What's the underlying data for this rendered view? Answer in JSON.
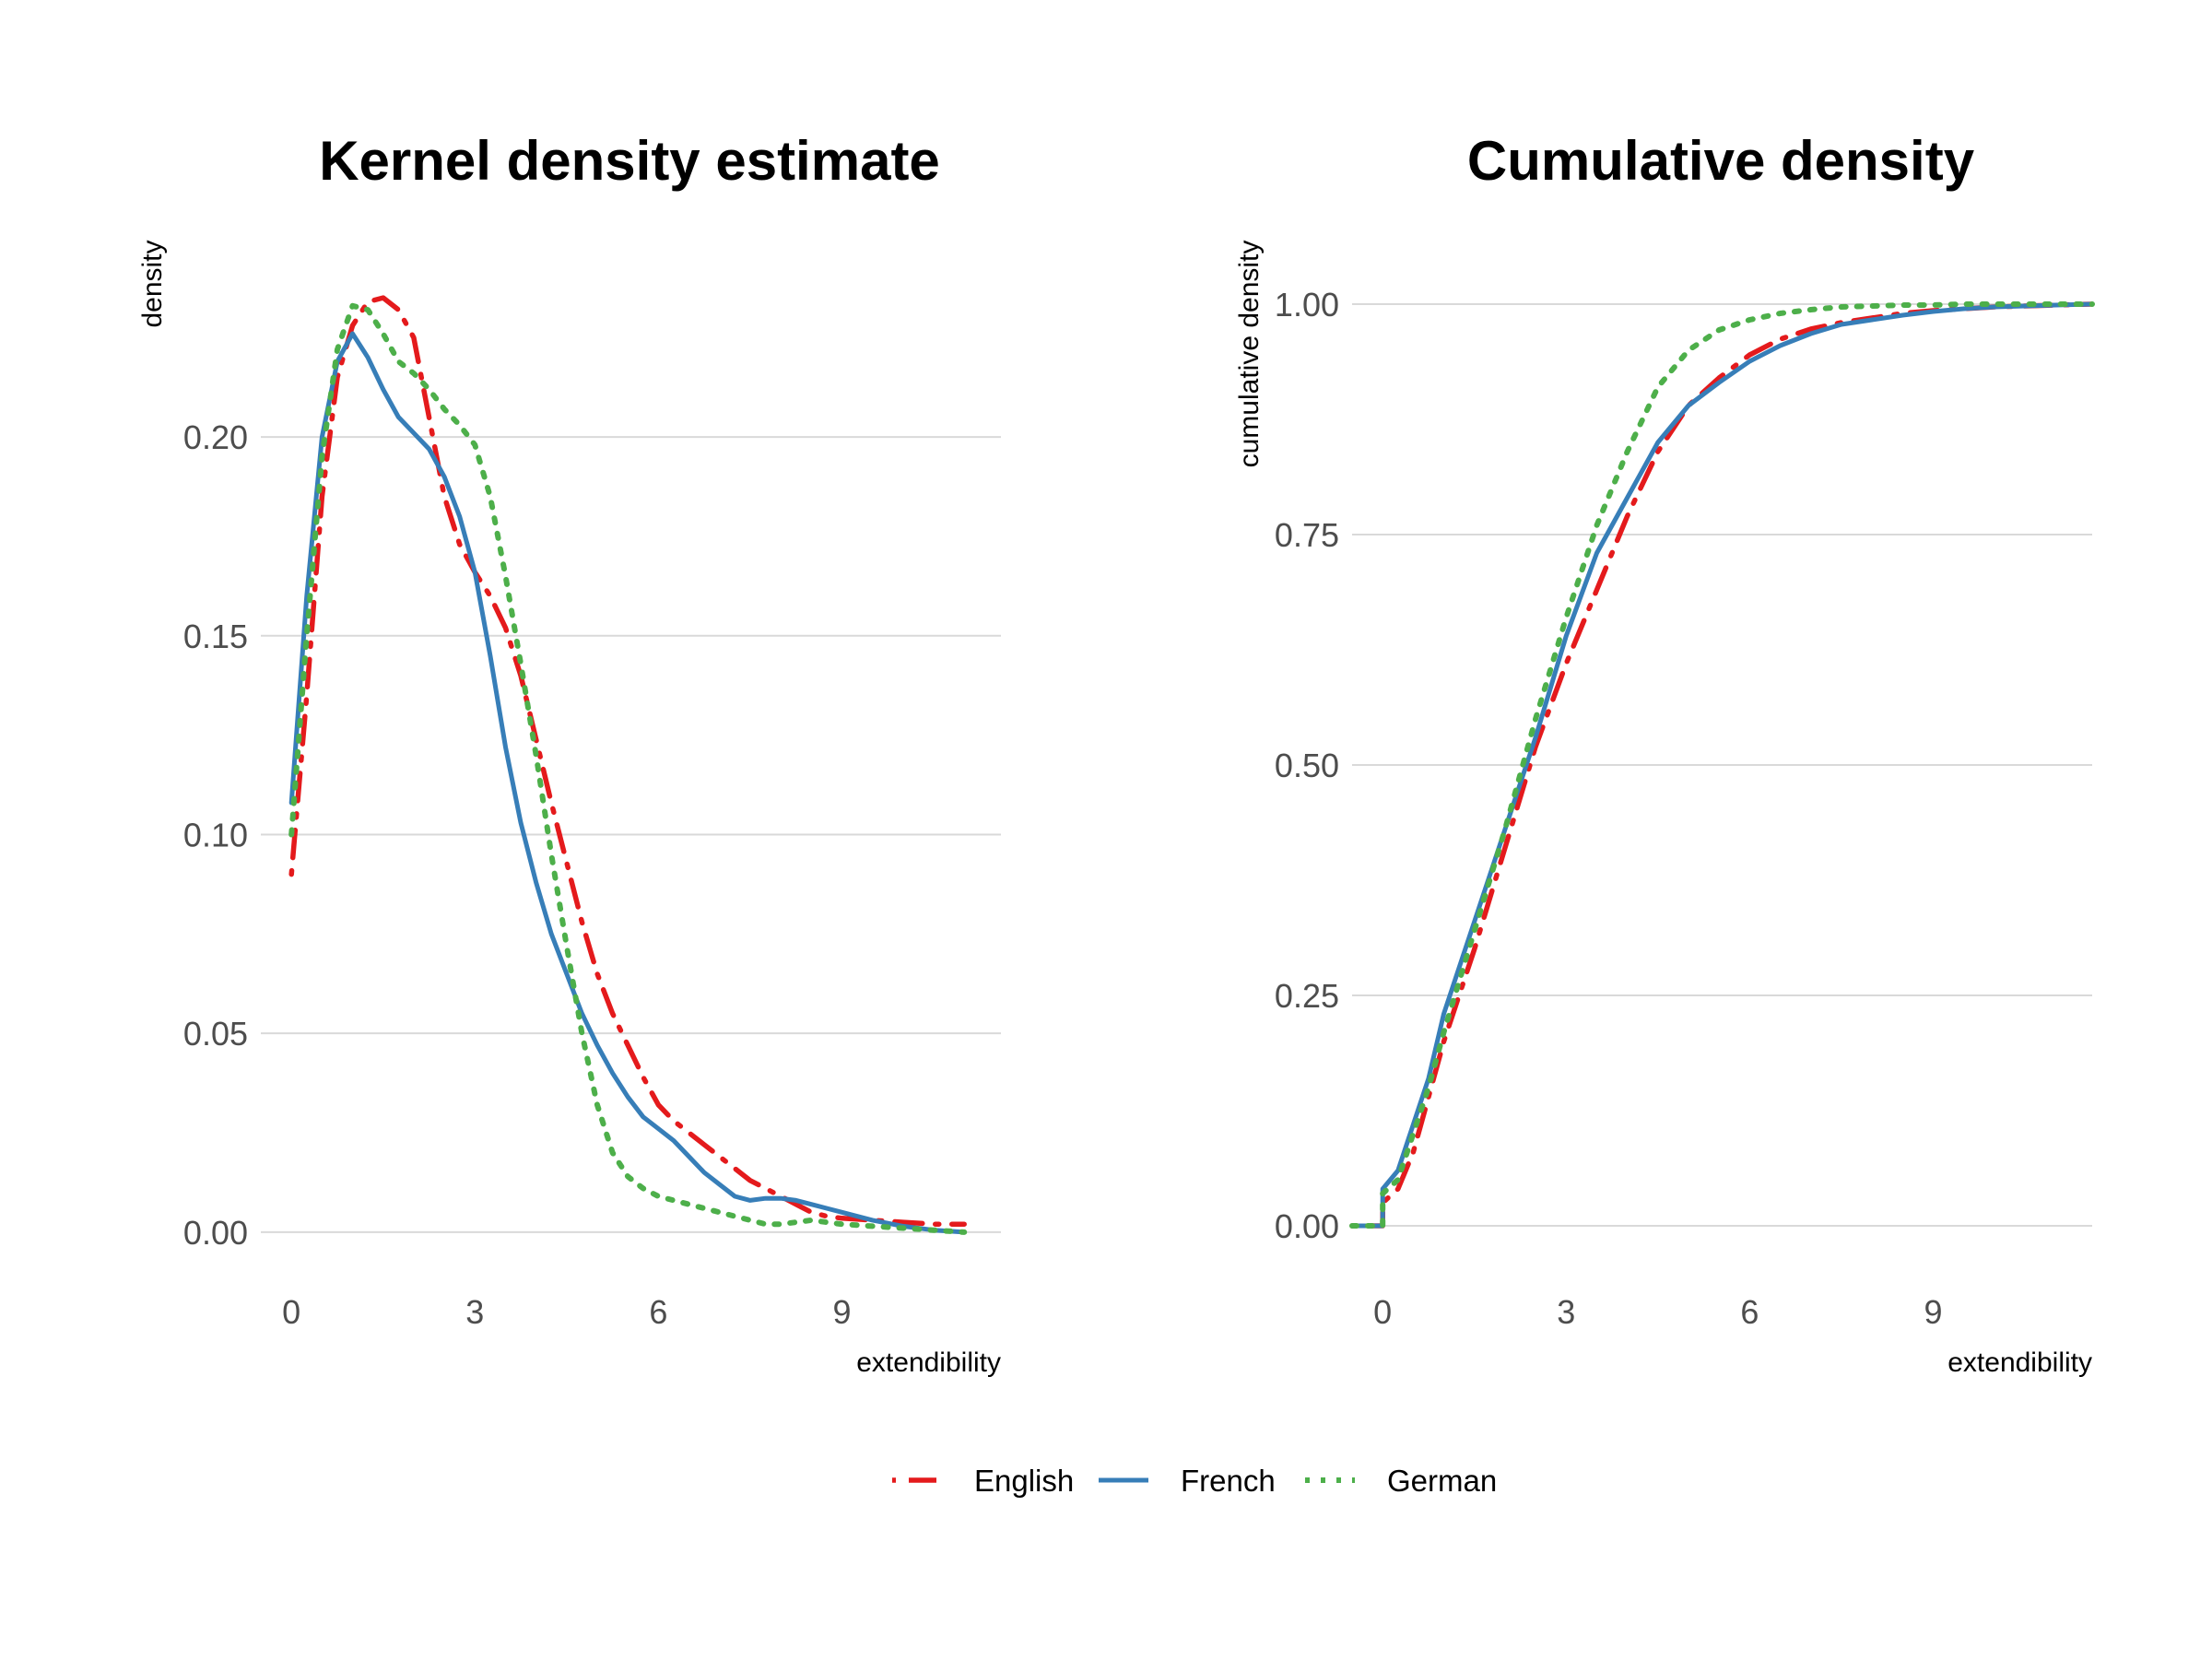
{
  "colors": {
    "English": "#e41a1c",
    "French": "#377eb8",
    "German": "#4daf4a"
  },
  "legend": {
    "items": [
      "English",
      "French",
      "German"
    ],
    "placement": "bottom"
  },
  "chart_data": [
    {
      "type": "line",
      "title": "Kernel density estimate",
      "xlabel": "extendibility",
      "ylabel": "density",
      "xlim": [
        -0.5,
        11.6
      ],
      "ylim": [
        -0.01,
        0.245
      ],
      "xticks": [
        0,
        3,
        6,
        9
      ],
      "yticks": [
        0.0,
        0.05,
        0.1,
        0.15,
        0.2
      ],
      "ytick_labels": [
        "0.00",
        "0.05",
        "0.10",
        "0.15",
        "0.20"
      ],
      "grid": "horizontal",
      "series": [
        {
          "name": "English",
          "line_style": "dotdash",
          "x": [
            0,
            0.25,
            0.5,
            0.75,
            1.0,
            1.25,
            1.5,
            1.75,
            2.0,
            2.25,
            2.5,
            2.75,
            3.0,
            3.25,
            3.5,
            3.75,
            4.0,
            4.25,
            4.5,
            4.75,
            5.0,
            5.25,
            5.5,
            5.75,
            6.0,
            6.25,
            6.5,
            6.75,
            7.0,
            7.25,
            7.5,
            7.75,
            8.0,
            8.25,
            8.5,
            8.75,
            9.0,
            9.5,
            10.0,
            10.5,
            11.0
          ],
          "y": [
            0.09,
            0.135,
            0.185,
            0.215,
            0.228,
            0.234,
            0.235,
            0.232,
            0.225,
            0.205,
            0.185,
            0.173,
            0.166,
            0.16,
            0.152,
            0.14,
            0.124,
            0.108,
            0.093,
            0.078,
            0.065,
            0.055,
            0.047,
            0.039,
            0.032,
            0.028,
            0.025,
            0.022,
            0.019,
            0.016,
            0.013,
            0.011,
            0.009,
            0.007,
            0.005,
            0.004,
            0.0035,
            0.003,
            0.0025,
            0.002,
            0.002
          ]
        },
        {
          "name": "French",
          "line_style": "solid",
          "x": [
            0,
            0.25,
            0.5,
            0.75,
            1.0,
            1.25,
            1.5,
            1.75,
            2.0,
            2.25,
            2.5,
            2.75,
            3.0,
            3.25,
            3.5,
            3.75,
            4.0,
            4.25,
            4.5,
            4.75,
            5.0,
            5.25,
            5.5,
            5.75,
            6.0,
            6.25,
            6.5,
            6.75,
            7.0,
            7.25,
            7.5,
            7.75,
            8.0,
            8.25,
            8.5,
            8.75,
            9.0,
            9.5,
            10.0,
            10.5,
            11.0
          ],
          "y": [
            0.108,
            0.16,
            0.2,
            0.219,
            0.226,
            0.22,
            0.212,
            0.205,
            0.201,
            0.197,
            0.19,
            0.18,
            0.166,
            0.145,
            0.122,
            0.103,
            0.088,
            0.075,
            0.065,
            0.055,
            0.047,
            0.04,
            0.034,
            0.029,
            0.026,
            0.023,
            0.019,
            0.015,
            0.012,
            0.009,
            0.008,
            0.0085,
            0.0085,
            0.008,
            0.007,
            0.006,
            0.005,
            0.003,
            0.0015,
            0.0005,
            0.0
          ]
        },
        {
          "name": "German",
          "line_style": "dotted",
          "x": [
            0,
            0.25,
            0.5,
            0.75,
            1.0,
            1.25,
            1.5,
            1.75,
            2.0,
            2.25,
            2.5,
            2.75,
            3.0,
            3.25,
            3.5,
            3.75,
            4.0,
            4.25,
            4.5,
            4.75,
            5.0,
            5.25,
            5.5,
            5.75,
            6.0,
            6.25,
            6.5,
            6.75,
            7.0,
            7.25,
            7.5,
            7.75,
            8.0,
            8.25,
            8.5,
            8.75,
            9.0,
            9.5,
            10.0,
            10.5,
            11.0
          ],
          "y": [
            0.1,
            0.15,
            0.195,
            0.222,
            0.233,
            0.232,
            0.226,
            0.219,
            0.216,
            0.212,
            0.207,
            0.203,
            0.198,
            0.185,
            0.165,
            0.143,
            0.12,
            0.095,
            0.072,
            0.05,
            0.032,
            0.02,
            0.014,
            0.011,
            0.009,
            0.008,
            0.007,
            0.006,
            0.005,
            0.004,
            0.003,
            0.002,
            0.002,
            0.0025,
            0.003,
            0.0025,
            0.002,
            0.0015,
            0.001,
            0.0005,
            0.0
          ]
        }
      ]
    },
    {
      "type": "line",
      "title": "Cumulative density",
      "xlabel": "extendibility",
      "ylabel": "cumulative density",
      "xlim": [
        -0.5,
        11.6
      ],
      "ylim": [
        -0.05,
        1.05
      ],
      "xticks": [
        0,
        3,
        6,
        9
      ],
      "yticks": [
        0.0,
        0.25,
        0.5,
        0.75,
        1.0
      ],
      "ytick_labels": [
        "0.00",
        "0.25",
        "0.50",
        "0.75",
        "1.00"
      ],
      "grid": "horizontal",
      "series": [
        {
          "name": "English",
          "line_style": "dotdash",
          "x": [
            -0.5,
            0,
            0,
            0.25,
            0.5,
            0.75,
            1.0,
            1.5,
            2.0,
            2.5,
            3.0,
            3.5,
            4.0,
            4.5,
            5.0,
            5.5,
            6.0,
            6.5,
            7.0,
            7.5,
            8.0,
            8.5,
            9.0,
            9.5,
            10.0,
            10.5,
            11.0,
            11.6
          ],
          "y": [
            0,
            0,
            0.025,
            0.04,
            0.08,
            0.14,
            0.2,
            0.3,
            0.41,
            0.52,
            0.61,
            0.69,
            0.77,
            0.84,
            0.89,
            0.92,
            0.945,
            0.962,
            0.973,
            0.98,
            0.985,
            0.99,
            0.993,
            0.995,
            0.997,
            0.998,
            0.999,
            1.0
          ]
        },
        {
          "name": "French",
          "line_style": "solid",
          "x": [
            -0.5,
            0,
            0,
            0.25,
            0.5,
            0.75,
            1.0,
            1.5,
            2.0,
            2.5,
            3.0,
            3.5,
            4.0,
            4.5,
            5.0,
            5.5,
            6.0,
            6.5,
            7.0,
            7.5,
            8.0,
            8.5,
            9.0,
            9.5,
            10.0,
            10.5,
            11.0,
            11.6
          ],
          "y": [
            0,
            0,
            0.04,
            0.06,
            0.11,
            0.16,
            0.23,
            0.33,
            0.43,
            0.53,
            0.64,
            0.73,
            0.79,
            0.85,
            0.89,
            0.915,
            0.938,
            0.955,
            0.968,
            0.978,
            0.983,
            0.988,
            0.992,
            0.995,
            0.997,
            0.998,
            0.999,
            1.0
          ]
        },
        {
          "name": "German",
          "line_style": "dotted",
          "x": [
            -0.5,
            0,
            0,
            0.25,
            0.5,
            0.75,
            1.0,
            1.5,
            2.0,
            2.5,
            3.0,
            3.5,
            4.0,
            4.5,
            5.0,
            5.5,
            6.0,
            6.5,
            7.0,
            7.5,
            8.0,
            8.5,
            9.0,
            9.5,
            10.0,
            10.5,
            11.0,
            11.6
          ],
          "y": [
            0,
            0,
            0.035,
            0.05,
            0.1,
            0.15,
            0.21,
            0.32,
            0.43,
            0.55,
            0.66,
            0.76,
            0.84,
            0.91,
            0.95,
            0.972,
            0.983,
            0.99,
            0.994,
            0.997,
            0.998,
            0.999,
            0.999,
            1.0,
            1.0,
            1.0,
            1.0,
            1.0
          ]
        }
      ]
    }
  ]
}
